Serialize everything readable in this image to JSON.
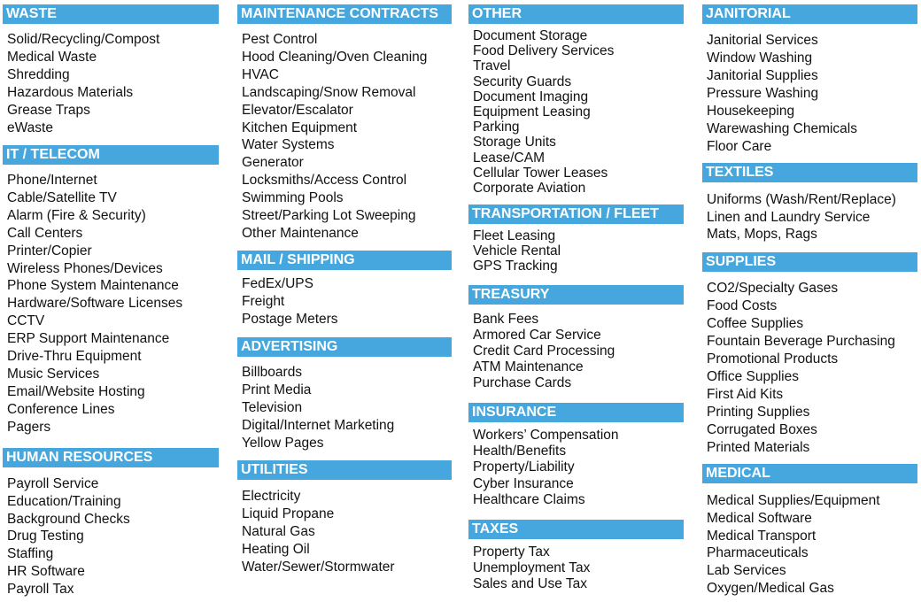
{
  "columns": [
    {
      "sections": [
        {
          "title": "WASTE",
          "items": [
            "Solid/Recycling/Compost",
            "Medical Waste",
            "Shredding",
            "Hazardous Materials",
            "Grease Traps",
            "eWaste"
          ]
        },
        {
          "title": "IT / TELECOM",
          "items": [
            "Phone/Internet",
            "Cable/Satellite TV",
            "Alarm (Fire & Security)",
            "Call Centers",
            "Printer/Copier",
            "Wireless Phones/Devices",
            "Phone System Maintenance",
            "Hardware/Software Licenses",
            "CCTV",
            "ERP Support Maintenance",
            "Drive-Thru Equipment",
            "Music Services",
            "Email/Website Hosting",
            "Conference Lines",
            "Pagers"
          ]
        },
        {
          "title": "HUMAN RESOURCES",
          "items": [
            "Payroll Service",
            "Education/Training",
            "Background Checks",
            "Drug Testing",
            "Staffing",
            "HR Software",
            "Payroll Tax"
          ]
        }
      ]
    },
    {
      "sections": [
        {
          "title": "MAINTENANCE CONTRACTS",
          "items": [
            "Pest Control",
            "Hood Cleaning/Oven Cleaning",
            "HVAC",
            "Landscaping/Snow Removal",
            "Elevator/Escalator",
            "Kitchen Equipment",
            "Water Systems",
            "Generator",
            "Locksmiths/Access Control",
            "Swimming Pools",
            "Street/Parking Lot Sweeping",
            "Other Maintenance"
          ]
        },
        {
          "title": "MAIL / SHIPPING",
          "items": [
            "FedEx/UPS",
            "Freight",
            "Postage Meters"
          ]
        },
        {
          "title": "ADVERTISING",
          "items": [
            "Billboards",
            "Print Media",
            "Television",
            "Digital/Internet Marketing",
            "Yellow Pages"
          ]
        },
        {
          "title": "UTILITIES",
          "items": [
            "Electricity",
            "Liquid Propane",
            "Natural Gas",
            "Heating Oil",
            "Water/Sewer/Stormwater"
          ]
        }
      ]
    },
    {
      "sections": [
        {
          "title": "OTHER",
          "items": [
            "Document Storage",
            "Food Delivery Services",
            "Travel",
            "Security Guards",
            "Document Imaging",
            "Equipment Leasing",
            "Parking",
            "Storage Units",
            "Lease/CAM",
            "Cellular Tower Leases",
            "Corporate Aviation"
          ]
        },
        {
          "title": "TRANSPORTATION / FLEET",
          "items": [
            "Fleet Leasing",
            "Vehicle Rental",
            "GPS Tracking"
          ]
        },
        {
          "title": "TREASURY",
          "items": [
            "Bank Fees",
            "Armored Car Service",
            "Credit Card Processing",
            "ATM Maintenance",
            "Purchase Cards"
          ]
        },
        {
          "title": "INSURANCE",
          "items": [
            "Workers’ Compensation",
            "Health/Benefits",
            "Property/Liability",
            "Cyber Insurance",
            "Healthcare Claims"
          ]
        },
        {
          "title": "TAXES",
          "items": [
            "Property Tax",
            "Unemployment Tax",
            "Sales and Use Tax"
          ]
        }
      ]
    },
    {
      "sections": [
        {
          "title": "JANITORIAL",
          "items": [
            "Janitorial Services",
            "Window Washing",
            "Janitorial Supplies",
            "Pressure Washing",
            "Housekeeping",
            "Warewashing Chemicals",
            "Floor Care"
          ]
        },
        {
          "title": "TEXTILES",
          "items": [
            "Uniforms (Wash/Rent/Replace)",
            "Linen and Laundry Service",
            "Mats, Mops, Rags"
          ]
        },
        {
          "title": "SUPPLIES",
          "items": [
            "CO2/Specialty Gases",
            "Food Costs",
            "Coffee Supplies",
            "Fountain Beverage Purchasing",
            "Promotional Products",
            "Office Supplies",
            "First Aid Kits",
            "Printing Supplies",
            "Corrugated Boxes",
            "Printed Materials"
          ]
        },
        {
          "title": "MEDICAL",
          "items": [
            "Medical Supplies/Equipment",
            "Medical Software",
            "Medical Transport",
            "Pharmaceuticals",
            "Lab Services",
            "Oxygen/Medical Gas"
          ]
        }
      ]
    }
  ]
}
